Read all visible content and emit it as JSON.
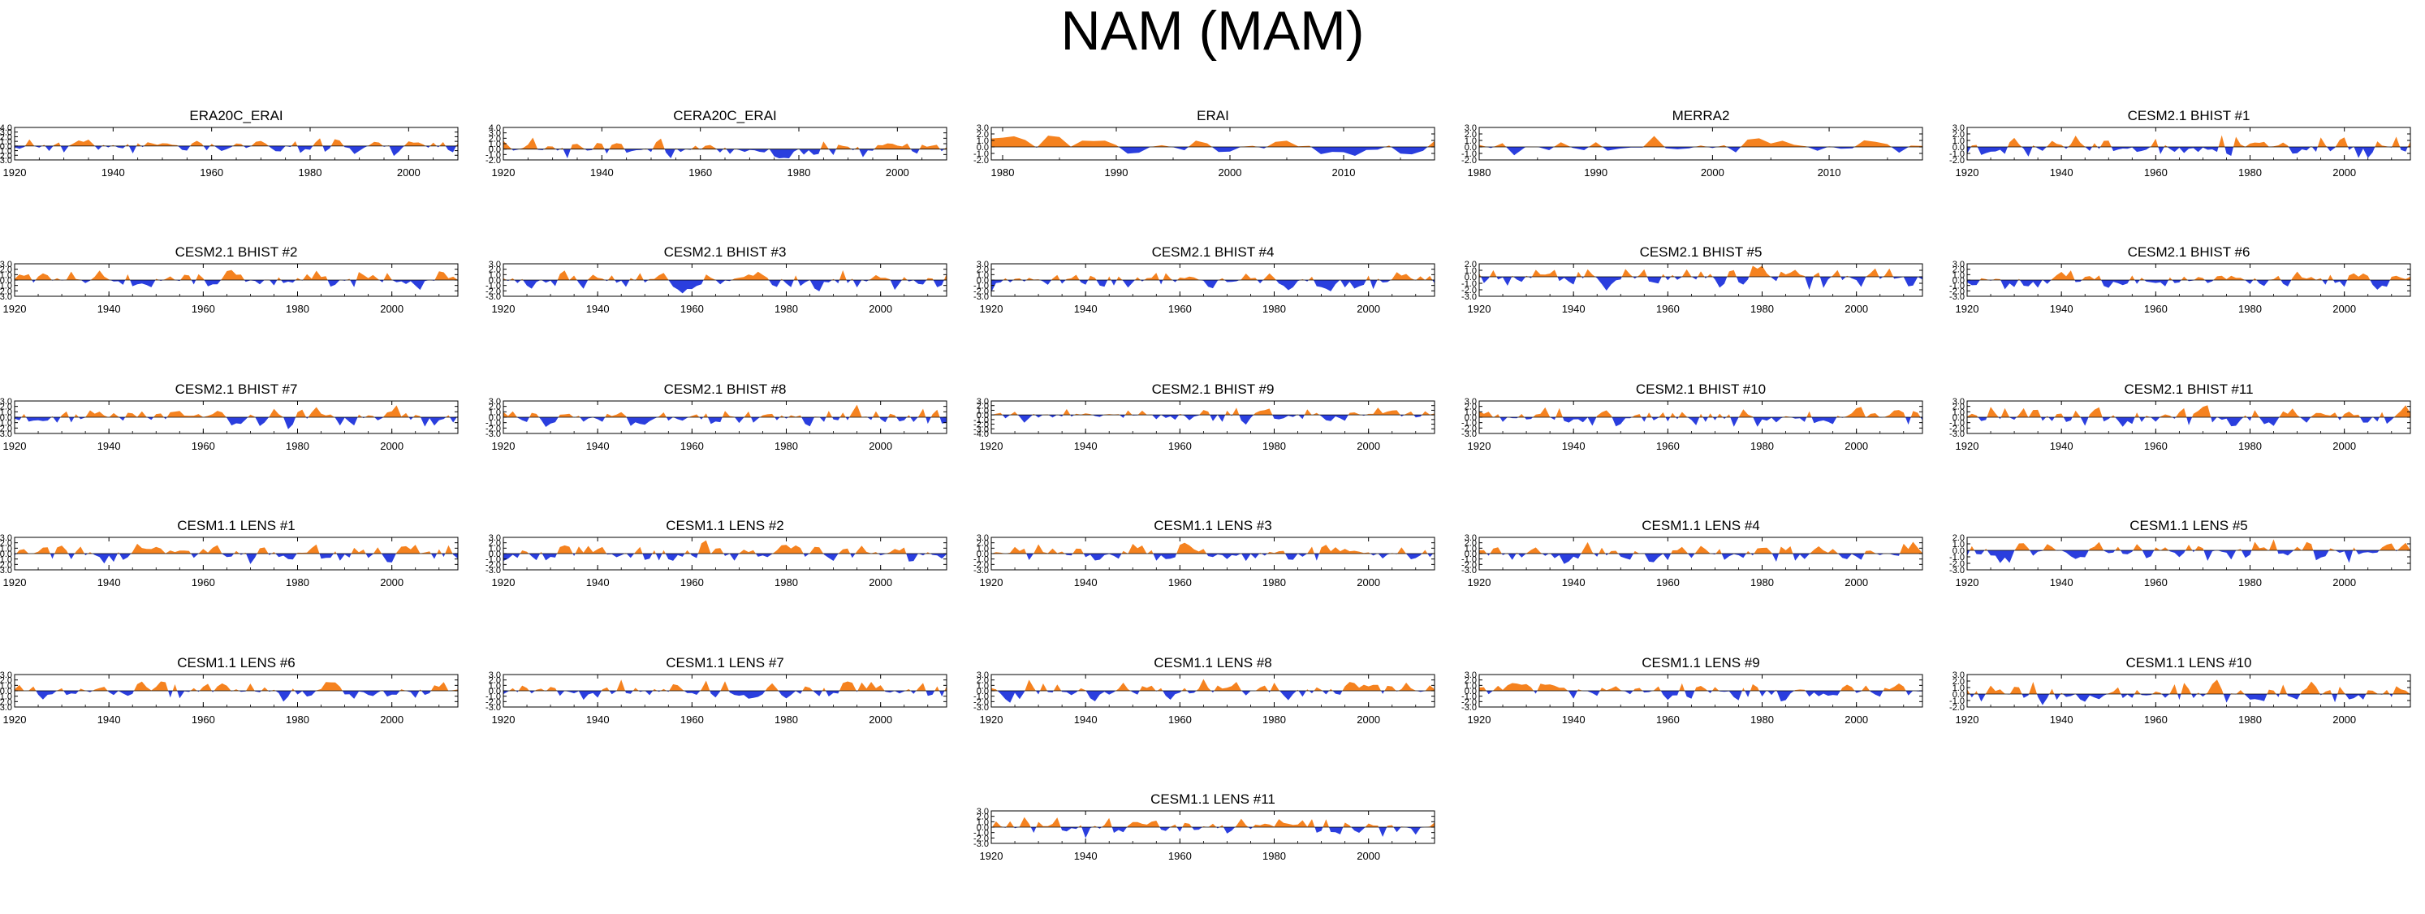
{
  "page": {
    "title": "NAM (MAM)"
  },
  "colors": {
    "positive": "#f5821f",
    "negative": "#2a3ede",
    "axis": "#000000"
  },
  "chart_data": [
    {
      "id": "era20c-erai",
      "type": "area",
      "title": "ERA20C_ERAI",
      "x_start": 1920,
      "x_end": 2010,
      "xticks": [
        1920,
        1940,
        1960,
        1980,
        2000
      ],
      "ylim": [
        -3,
        4
      ],
      "yticks": [
        -3,
        -2,
        -1,
        0,
        1,
        2,
        3,
        4
      ],
      "ytick_labels": [
        "-3.0",
        "-2.0",
        "-1.0",
        "0.0",
        "1.0",
        "2.0",
        "3.0",
        "4.0"
      ],
      "seed": 11
    },
    {
      "id": "cera20c-erai",
      "type": "area",
      "title": "CERA20C_ERAI",
      "x_start": 1920,
      "x_end": 2010,
      "xticks": [
        1920,
        1940,
        1960,
        1980,
        2000
      ],
      "ylim": [
        -2,
        4
      ],
      "yticks": [
        -2,
        -1,
        0,
        1,
        2,
        3,
        4
      ],
      "ytick_labels": [
        "-2.0",
        "-1.0",
        "0.0",
        "1.0",
        "2.0",
        "3.0",
        "4.0"
      ],
      "seed": 23
    },
    {
      "id": "erai",
      "type": "area",
      "title": "ERAI",
      "x_start": 1979,
      "x_end": 2018,
      "xticks": [
        1980,
        1990,
        2000,
        2010
      ],
      "ylim": [
        -2,
        3
      ],
      "yticks": [
        -2,
        -1,
        0,
        1,
        2,
        3
      ],
      "ytick_labels": [
        "-2.0",
        "-1.0",
        "0.0",
        "1.0",
        "2.0",
        "3.0"
      ],
      "seed": 37
    },
    {
      "id": "merra2",
      "type": "area",
      "title": "MERRA2",
      "x_start": 1980,
      "x_end": 2018,
      "xticks": [
        1980,
        1990,
        2000,
        2010
      ],
      "ylim": [
        -2,
        3
      ],
      "yticks": [
        -2,
        -1,
        0,
        1,
        2,
        3
      ],
      "ytick_labels": [
        "-2.0",
        "-1.0",
        "0.0",
        "1.0",
        "2.0",
        "3.0"
      ],
      "seed": 41
    },
    {
      "id": "cesm2-bhist-1",
      "type": "area",
      "title": "CESM2.1 BHIST #1",
      "x_start": 1920,
      "x_end": 2014,
      "xticks": [
        1920,
        1940,
        1960,
        1980,
        2000
      ],
      "ylim": [
        -2,
        3
      ],
      "yticks": [
        -2,
        -1,
        0,
        1,
        2,
        3
      ],
      "ytick_labels": [
        "-2.0",
        "-1.0",
        "0.0",
        "1.0",
        "2.0",
        "3.0"
      ],
      "seed": 53
    },
    {
      "id": "cesm2-bhist-2",
      "type": "area",
      "title": "CESM2.1 BHIST #2",
      "x_start": 1920,
      "x_end": 2014,
      "xticks": [
        1920,
        1940,
        1960,
        1980,
        2000
      ],
      "ylim": [
        -3,
        3
      ],
      "yticks": [
        -3,
        -2,
        -1,
        0,
        1,
        2,
        3
      ],
      "ytick_labels": [
        "-3.0",
        "-2.0",
        "-1.0",
        "0.0",
        "1.0",
        "2.0",
        "3.0"
      ],
      "seed": 61
    },
    {
      "id": "cesm2-bhist-3",
      "type": "area",
      "title": "CESM2.1 BHIST #3",
      "x_start": 1920,
      "x_end": 2014,
      "xticks": [
        1920,
        1940,
        1960,
        1980,
        2000
      ],
      "ylim": [
        -3,
        3
      ],
      "yticks": [
        -3,
        -2,
        -1,
        0,
        1,
        2,
        3
      ],
      "ytick_labels": [
        "-3.0",
        "-2.0",
        "-1.0",
        "0.0",
        "1.0",
        "2.0",
        "3.0"
      ],
      "seed": 67
    },
    {
      "id": "cesm2-bhist-4",
      "type": "area",
      "title": "CESM2.1 BHIST #4",
      "x_start": 1920,
      "x_end": 2014,
      "xticks": [
        1920,
        1940,
        1960,
        1980,
        2000
      ],
      "ylim": [
        -3,
        3
      ],
      "yticks": [
        -3,
        -2,
        -1,
        0,
        1,
        2,
        3
      ],
      "ytick_labels": [
        "-3.0",
        "-2.0",
        "-1.0",
        "0.0",
        "1.0",
        "2.0",
        "3.0"
      ],
      "seed": 71
    },
    {
      "id": "cesm2-bhist-5",
      "type": "area",
      "title": "CESM2.1 BHIST #5",
      "x_start": 1920,
      "x_end": 2014,
      "xticks": [
        1920,
        1940,
        1960,
        1980,
        2000
      ],
      "ylim": [
        -3,
        2
      ],
      "yticks": [
        -3,
        -2,
        -1,
        0,
        1,
        2
      ],
      "ytick_labels": [
        "-3.0",
        "-2.0",
        "-1.0",
        "0.0",
        "1.0",
        "2.0"
      ],
      "seed": 79
    },
    {
      "id": "cesm2-bhist-6",
      "type": "area",
      "title": "CESM2.1 BHIST #6",
      "x_start": 1920,
      "x_end": 2014,
      "xticks": [
        1920,
        1940,
        1960,
        1980,
        2000
      ],
      "ylim": [
        -3,
        3
      ],
      "yticks": [
        -3,
        -2,
        -1,
        0,
        1,
        2,
        3
      ],
      "ytick_labels": [
        "-3.0",
        "-2.0",
        "-1.0",
        "0.0",
        "1.0",
        "2.0",
        "3.0"
      ],
      "seed": 83
    },
    {
      "id": "cesm2-bhist-7",
      "type": "area",
      "title": "CESM2.1 BHIST #7",
      "x_start": 1920,
      "x_end": 2014,
      "xticks": [
        1920,
        1940,
        1960,
        1980,
        2000
      ],
      "ylim": [
        -3,
        3
      ],
      "yticks": [
        -3,
        -2,
        -1,
        0,
        1,
        2,
        3
      ],
      "ytick_labels": [
        "-3.0",
        "-2.0",
        "-1.0",
        "0.0",
        "1.0",
        "2.0",
        "3.0"
      ],
      "seed": 89
    },
    {
      "id": "cesm2-bhist-8",
      "type": "area",
      "title": "CESM2.1 BHIST #8",
      "x_start": 1920,
      "x_end": 2014,
      "xticks": [
        1920,
        1940,
        1960,
        1980,
        2000
      ],
      "ylim": [
        -3,
        3
      ],
      "yticks": [
        -3,
        -2,
        -1,
        0,
        1,
        2,
        3
      ],
      "ytick_labels": [
        "-3.0",
        "-2.0",
        "-1.0",
        "0.0",
        "1.0",
        "2.0",
        "3.0"
      ],
      "seed": 97
    },
    {
      "id": "cesm2-bhist-9",
      "type": "area",
      "title": "CESM2.1 BHIST #9",
      "x_start": 1920,
      "x_end": 2014,
      "xticks": [
        1920,
        1940,
        1960,
        1980,
        2000
      ],
      "ylim": [
        -4,
        3
      ],
      "yticks": [
        -4,
        -3,
        -2,
        -1,
        0,
        1,
        2,
        3
      ],
      "ytick_labels": [
        "-4.0",
        "-3.0",
        "-2.0",
        "-1.0",
        "0.0",
        "1.0",
        "2.0",
        "3.0"
      ],
      "seed": 101
    },
    {
      "id": "cesm2-bhist-10",
      "type": "area",
      "title": "CESM2.1 BHIST #10",
      "x_start": 1920,
      "x_end": 2014,
      "xticks": [
        1920,
        1940,
        1960,
        1980,
        2000
      ],
      "ylim": [
        -3,
        3
      ],
      "yticks": [
        -3,
        -2,
        -1,
        0,
        1,
        2,
        3
      ],
      "ytick_labels": [
        "-3.0",
        "-2.0",
        "-1.0",
        "0.0",
        "1.0",
        "2.0",
        "3.0"
      ],
      "seed": 103
    },
    {
      "id": "cesm2-bhist-11",
      "type": "area",
      "title": "CESM2.1 BHIST #11",
      "x_start": 1920,
      "x_end": 2014,
      "xticks": [
        1920,
        1940,
        1960,
        1980,
        2000
      ],
      "ylim": [
        -3,
        3
      ],
      "yticks": [
        -3,
        -2,
        -1,
        0,
        1,
        2,
        3
      ],
      "ytick_labels": [
        "-3.0",
        "-2.0",
        "-1.0",
        "0.0",
        "1.0",
        "2.0",
        "3.0"
      ],
      "seed": 107
    },
    {
      "id": "cesm1-lens-1",
      "type": "area",
      "title": "CESM1.1 LENS #1",
      "x_start": 1920,
      "x_end": 2014,
      "xticks": [
        1920,
        1940,
        1960,
        1980,
        2000
      ],
      "ylim": [
        -3,
        3
      ],
      "yticks": [
        -3,
        -2,
        -1,
        0,
        1,
        2,
        3
      ],
      "ytick_labels": [
        "-3.0",
        "-2.0",
        "-1.0",
        "0.0",
        "1.0",
        "2.0",
        "3.0"
      ],
      "seed": 109
    },
    {
      "id": "cesm1-lens-2",
      "type": "area",
      "title": "CESM1.1 LENS #2",
      "x_start": 1920,
      "x_end": 2014,
      "xticks": [
        1920,
        1940,
        1960,
        1980,
        2000
      ],
      "ylim": [
        -3,
        3
      ],
      "yticks": [
        -3,
        -2,
        -1,
        0,
        1,
        2,
        3
      ],
      "ytick_labels": [
        "-3.0",
        "-2.0",
        "-1.0",
        "0.0",
        "1.0",
        "2.0",
        "3.0"
      ],
      "seed": 113
    },
    {
      "id": "cesm1-lens-3",
      "type": "area",
      "title": "CESM1.1 LENS #3",
      "x_start": 1920,
      "x_end": 2014,
      "xticks": [
        1920,
        1940,
        1960,
        1980,
        2000
      ],
      "ylim": [
        -3,
        3
      ],
      "yticks": [
        -3,
        -2,
        -1,
        0,
        1,
        2,
        3
      ],
      "ytick_labels": [
        "-3.0",
        "-2.0",
        "-1.0",
        "0.0",
        "1.0",
        "2.0",
        "3.0"
      ],
      "seed": 127
    },
    {
      "id": "cesm1-lens-4",
      "type": "area",
      "title": "CESM1.1 LENS #4",
      "x_start": 1920,
      "x_end": 2014,
      "xticks": [
        1920,
        1940,
        1960,
        1980,
        2000
      ],
      "ylim": [
        -3,
        3
      ],
      "yticks": [
        -3,
        -2,
        -1,
        0,
        1,
        2,
        3
      ],
      "ytick_labels": [
        "-3.0",
        "-2.0",
        "-1.0",
        "0.0",
        "1.0",
        "2.0",
        "3.0"
      ],
      "seed": 131
    },
    {
      "id": "cesm1-lens-5",
      "type": "area",
      "title": "CESM1.1 LENS #5",
      "x_start": 1920,
      "x_end": 2014,
      "xticks": [
        1920,
        1940,
        1960,
        1980,
        2000
      ],
      "ylim": [
        -3,
        2
      ],
      "yticks": [
        -3,
        -2,
        -1,
        0,
        1,
        2
      ],
      "ytick_labels": [
        "-3.0",
        "-2.0",
        "-1.0",
        "0.0",
        "1.0",
        "2.0"
      ],
      "seed": 137
    },
    {
      "id": "cesm1-lens-6",
      "type": "area",
      "title": "CESM1.1 LENS #6",
      "x_start": 1920,
      "x_end": 2014,
      "xticks": [
        1920,
        1940,
        1960,
        1980,
        2000
      ],
      "ylim": [
        -3,
        3
      ],
      "yticks": [
        -3,
        -2,
        -1,
        0,
        1,
        2,
        3
      ],
      "ytick_labels": [
        "-3.0",
        "-2.0",
        "-1.0",
        "0.0",
        "1.0",
        "2.0",
        "3.0"
      ],
      "seed": 139
    },
    {
      "id": "cesm1-lens-7",
      "type": "area",
      "title": "CESM1.1 LENS #7",
      "x_start": 1920,
      "x_end": 2014,
      "xticks": [
        1920,
        1940,
        1960,
        1980,
        2000
      ],
      "ylim": [
        -3,
        3
      ],
      "yticks": [
        -3,
        -2,
        -1,
        0,
        1,
        2,
        3
      ],
      "ytick_labels": [
        "-3.0",
        "-2.0",
        "-1.0",
        "0.0",
        "1.0",
        "2.0",
        "3.0"
      ],
      "seed": 149
    },
    {
      "id": "cesm1-lens-8",
      "type": "area",
      "title": "CESM1.1 LENS #8",
      "x_start": 1920,
      "x_end": 2014,
      "xticks": [
        1920,
        1940,
        1960,
        1980,
        2000
      ],
      "ylim": [
        -3,
        3
      ],
      "yticks": [
        -3,
        -2,
        -1,
        0,
        1,
        2,
        3
      ],
      "ytick_labels": [
        "-3.0",
        "-2.0",
        "-1.0",
        "0.0",
        "1.0",
        "2.0",
        "3.0"
      ],
      "seed": 151
    },
    {
      "id": "cesm1-lens-9",
      "type": "area",
      "title": "CESM1.1 LENS #9",
      "x_start": 1920,
      "x_end": 2014,
      "xticks": [
        1920,
        1940,
        1960,
        1980,
        2000
      ],
      "ylim": [
        -3,
        3
      ],
      "yticks": [
        -3,
        -2,
        -1,
        0,
        1,
        2,
        3
      ],
      "ytick_labels": [
        "-3.0",
        "-2.0",
        "-1.0",
        "0.0",
        "1.0",
        "2.0",
        "3.0"
      ],
      "seed": 157
    },
    {
      "id": "cesm1-lens-10",
      "type": "area",
      "title": "CESM1.1 LENS #10",
      "x_start": 1920,
      "x_end": 2014,
      "xticks": [
        1920,
        1940,
        1960,
        1980,
        2000
      ],
      "ylim": [
        -2,
        3
      ],
      "yticks": [
        -2,
        -1,
        0,
        1,
        2,
        3
      ],
      "ytick_labels": [
        "-2.0",
        "-1.0",
        "0.0",
        "1.0",
        "2.0",
        "3.0"
      ],
      "seed": 163
    },
    {
      "id": "cesm1-lens-11",
      "type": "area",
      "title": "CESM1.1 LENS #11",
      "x_start": 1920,
      "x_end": 2014,
      "xticks": [
        1920,
        1940,
        1960,
        1980,
        2000
      ],
      "ylim": [
        -3,
        3
      ],
      "yticks": [
        -3,
        -2,
        -1,
        0,
        1,
        2,
        3
      ],
      "ytick_labels": [
        "-3.0",
        "-2.0",
        "-1.0",
        "0.0",
        "1.0",
        "2.0",
        "3.0"
      ],
      "seed": 167
    }
  ]
}
